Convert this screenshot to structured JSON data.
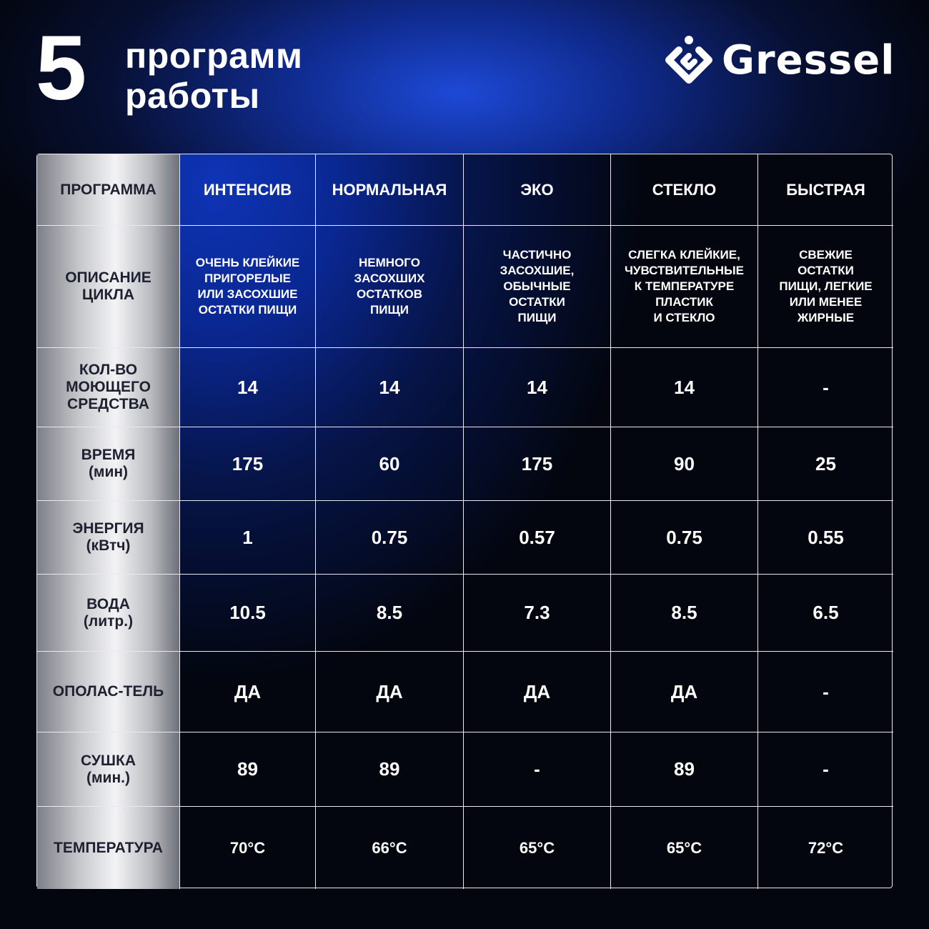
{
  "header": {
    "number": "5",
    "title_line1": "программ",
    "title_line2": "работы",
    "brand": "Gressel"
  },
  "table": {
    "corner": "ПРОГРАММА",
    "programs": [
      "ИНТЕНСИВ",
      "НОРМАЛЬНАЯ",
      "ЭКО",
      "СТЕКЛО",
      "БЫСТРАЯ"
    ],
    "rows": [
      {
        "label": "ОПИСАНИЕ\nЦИКЛА",
        "values": [
          "ОЧЕНЬ КЛЕЙКИЕ\nПРИГОРЕЛЫЕ\nИЛИ ЗАСОХШИЕ\nОСТАТКИ ПИЩИ",
          "НЕМНОГО\nЗАСОХШИХ\nОСТАТКОВ\nПИЩИ",
          "ЧАСТИЧНО\nЗАСОХШИЕ,\nОБЫЧНЫЕ\nОСТАТКИ\nПИЩИ",
          "СЛЕГКА КЛЕЙКИЕ,\nЧУВСТВИТЕЛЬНЫЕ\nК ТЕМПЕРАТУРЕ\nПЛАСТИК\nИ СТЕКЛО",
          "СВЕЖИЕ\nОСТАТКИ\nПИЩИ, ЛЕГКИЕ\nИЛИ МЕНЕЕ\nЖИРНЫЕ"
        ]
      },
      {
        "label": "КОЛ-ВО\nМОЮЩЕГО\nСРЕДСТВА",
        "values": [
          "14",
          "14",
          "14",
          "14",
          "-"
        ]
      },
      {
        "label": "ВРЕМЯ\n(мин)",
        "values": [
          "175",
          "60",
          "175",
          "90",
          "25"
        ]
      },
      {
        "label": "ЭНЕРГИЯ\n(кВтч)",
        "values": [
          "1",
          "0.75",
          "0.57",
          "0.75",
          "0.55"
        ]
      },
      {
        "label": "ВОДА\n(литр.)",
        "values": [
          "10.5",
          "8.5",
          "7.3",
          "8.5",
          "6.5"
        ]
      },
      {
        "label": "ОПОЛАС-ТЕЛЬ",
        "values": [
          "ДА",
          "ДА",
          "ДА",
          "ДА",
          "-"
        ]
      },
      {
        "label": "СУШКА\n(мин.)",
        "values": [
          "89",
          "89",
          "-",
          "89",
          "-"
        ]
      },
      {
        "label": "ТЕМПЕРАТУРА",
        "values": [
          "70°C",
          "66°C",
          "65°C",
          "65°C",
          "72°C"
        ]
      }
    ]
  }
}
